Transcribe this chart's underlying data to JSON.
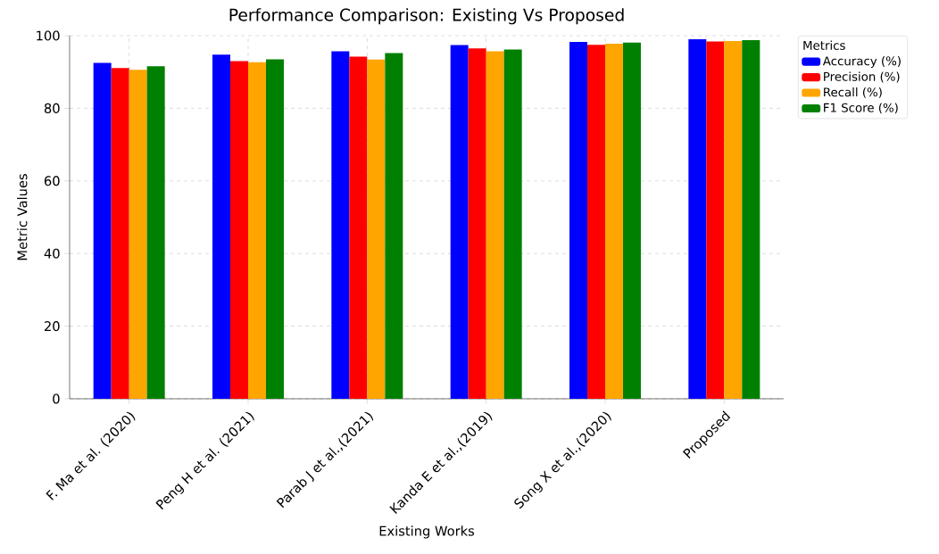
{
  "chart_data": {
    "type": "bar",
    "title": "Performance Comparison: Existing Vs Proposed",
    "xlabel": "Existing Works",
    "ylabel": "Metric Values",
    "legend_title": "Metrics",
    "categories": [
      "F. Ma et al. (2020)",
      "Peng H et al. (2021)",
      "Parab J et al.,(2021)",
      "Kanda E et al.,(2019)",
      "Song X et al.,(2020)",
      "Proposed"
    ],
    "series": [
      {
        "name": "Accuracy (%)",
        "color": "#0000ff",
        "values": [
          92.5,
          94.8,
          95.7,
          97.4,
          98.3,
          99.0
        ]
      },
      {
        "name": "Precision (%)",
        "color": "#ff0000",
        "values": [
          91.1,
          93.0,
          94.2,
          96.5,
          97.5,
          98.4
        ]
      },
      {
        "name": "Recall (%)",
        "color": "#ffa500",
        "values": [
          90.6,
          92.7,
          93.4,
          95.7,
          97.8,
          98.5
        ]
      },
      {
        "name": "F1 Score (%)",
        "color": "#008000",
        "values": [
          91.6,
          93.5,
          95.2,
          96.2,
          98.1,
          98.8
        ]
      }
    ],
    "ylim": [
      0,
      100
    ],
    "yticks": [
      0,
      20,
      40,
      60,
      80,
      100
    ],
    "grid": true,
    "legend": "top right"
  }
}
